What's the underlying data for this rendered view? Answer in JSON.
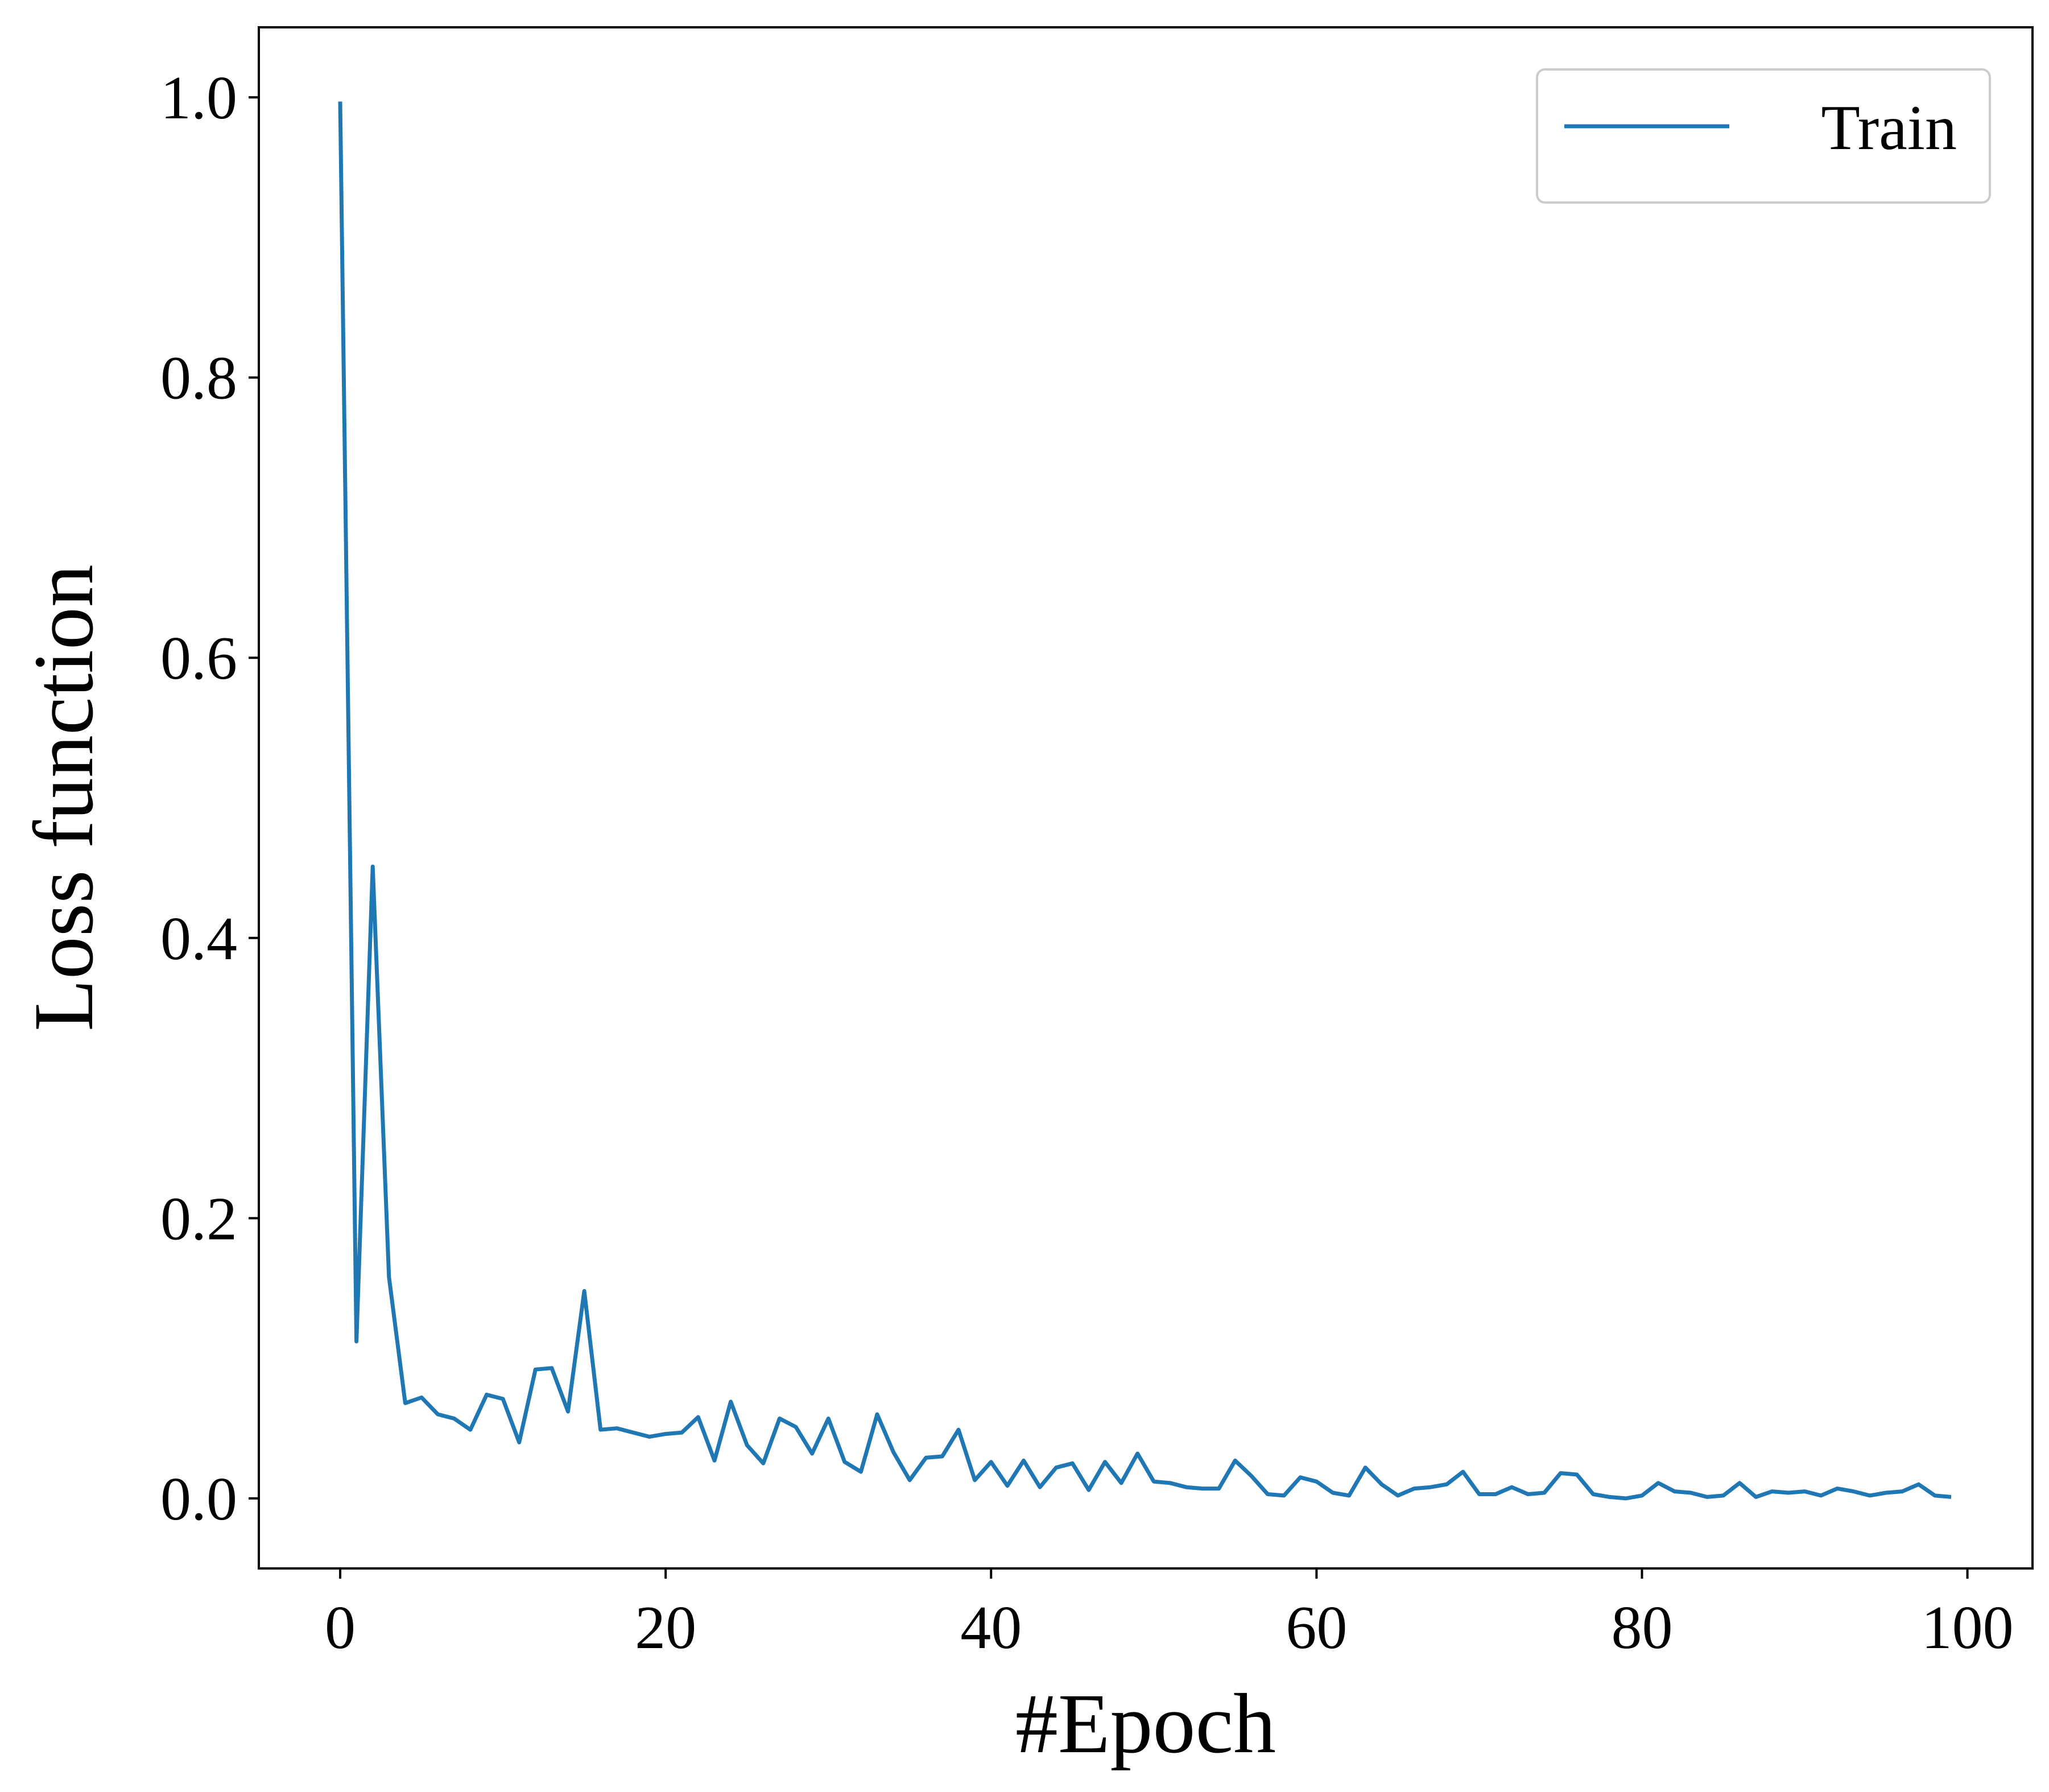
{
  "chart_data": {
    "type": "line",
    "xlabel": "#Epoch",
    "ylabel": "Loss function",
    "xlim": [
      -5,
      104
    ],
    "ylim": [
      -0.05,
      1.05
    ],
    "xticks": [
      0,
      20,
      40,
      60,
      80,
      100
    ],
    "yticks": [
      0.0,
      0.2,
      0.4,
      0.6,
      0.8,
      1.0
    ],
    "xtick_labels": [
      "0",
      "20",
      "40",
      "60",
      "80",
      "100"
    ],
    "ytick_labels": [
      "0.0",
      "0.2",
      "0.4",
      "0.6",
      "0.8",
      "1.0"
    ],
    "grid": false,
    "legend": {
      "placement": "top-right"
    },
    "series": [
      {
        "name": "Train",
        "color": "#1f77b4",
        "x": [
          0,
          1,
          2,
          3,
          4,
          5,
          6,
          7,
          8,
          9,
          10,
          11,
          12,
          13,
          14,
          15,
          16,
          17,
          18,
          19,
          20,
          21,
          22,
          23,
          24,
          25,
          26,
          27,
          28,
          29,
          30,
          31,
          32,
          33,
          34,
          35,
          36,
          37,
          38,
          39,
          40,
          41,
          42,
          43,
          44,
          45,
          46,
          47,
          48,
          49,
          50,
          51,
          52,
          53,
          54,
          55,
          56,
          57,
          58,
          59,
          60,
          61,
          62,
          63,
          64,
          65,
          66,
          67,
          68,
          69,
          70,
          71,
          72,
          73,
          74,
          75,
          76,
          77,
          78,
          79,
          80,
          81,
          82,
          83,
          84,
          85,
          86,
          87,
          88,
          89,
          90,
          91,
          92,
          93,
          94,
          95,
          96,
          97,
          98,
          99
        ],
        "y": [
          0.997,
          0.112,
          0.451,
          0.158,
          0.068,
          0.072,
          0.06,
          0.057,
          0.049,
          0.074,
          0.071,
          0.04,
          0.092,
          0.093,
          0.062,
          0.148,
          0.049,
          0.05,
          0.047,
          0.044,
          0.046,
          0.047,
          0.058,
          0.027,
          0.069,
          0.038,
          0.025,
          0.057,
          0.051,
          0.032,
          0.057,
          0.026,
          0.019,
          0.06,
          0.033,
          0.013,
          0.029,
          0.03,
          0.049,
          0.013,
          0.026,
          0.009,
          0.027,
          0.008,
          0.022,
          0.025,
          0.006,
          0.026,
          0.011,
          0.032,
          0.012,
          0.011,
          0.008,
          0.007,
          0.007,
          0.027,
          0.016,
          0.003,
          0.002,
          0.015,
          0.012,
          0.004,
          0.002,
          0.022,
          0.01,
          0.002,
          0.007,
          0.008,
          0.01,
          0.019,
          0.003,
          0.003,
          0.008,
          0.003,
          0.004,
          0.018,
          0.017,
          0.003,
          0.001,
          0.0,
          0.002,
          0.011,
          0.005,
          0.004,
          0.001,
          0.002,
          0.011,
          0.001,
          0.005,
          0.004,
          0.005,
          0.002,
          0.007,
          0.005,
          0.002,
          0.004,
          0.005,
          0.01,
          0.002,
          0.001
        ]
      }
    ]
  }
}
